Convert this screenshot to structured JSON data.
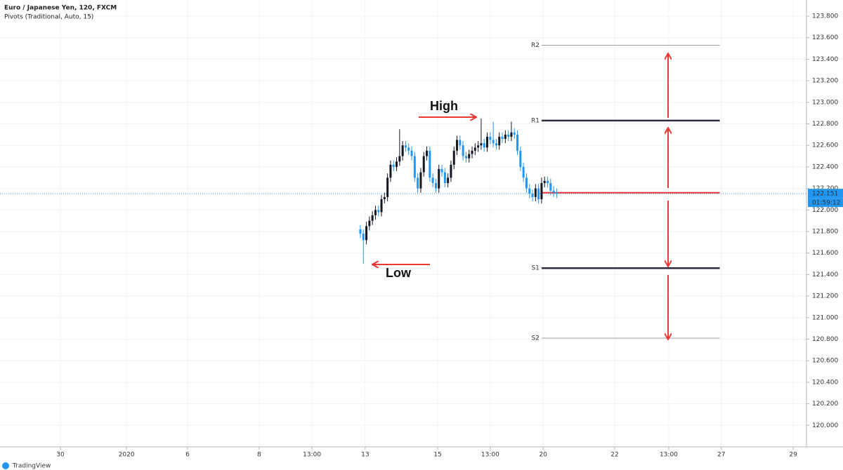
{
  "chart_data": {
    "type": "candlestick",
    "title": "Euro / Japanese Yen, 120, FXCM",
    "subtitle": "Pivots (Traditional, Auto, 15)",
    "brand": "TradingView",
    "up_color": "#131722",
    "down_color": "#2196f3",
    "grid": true,
    "x": [
      0,
      1,
      2,
      3,
      4,
      5,
      6,
      7,
      8,
      9,
      10,
      11,
      12,
      13,
      14,
      15,
      16,
      17,
      18,
      19,
      20,
      21,
      22,
      23,
      24,
      25,
      26,
      27,
      28,
      29,
      30,
      31,
      32,
      33,
      34,
      35,
      36,
      37,
      38,
      39,
      40,
      41,
      42,
      43,
      44,
      45,
      46,
      47,
      48,
      49,
      50,
      51,
      52,
      53,
      54,
      55,
      56,
      57,
      58,
      59,
      60,
      61,
      62,
      63,
      64,
      65
    ],
    "open": [
      121.82,
      121.78,
      121.72,
      121.85,
      121.9,
      121.95,
      122.0,
      121.98,
      122.1,
      122.12,
      122.3,
      122.42,
      122.4,
      122.45,
      122.5,
      122.6,
      122.58,
      122.55,
      122.5,
      122.3,
      122.2,
      122.35,
      122.5,
      122.55,
      122.3,
      122.25,
      122.2,
      122.38,
      122.35,
      122.25,
      122.3,
      122.42,
      122.55,
      122.65,
      122.6,
      122.5,
      122.48,
      122.52,
      122.55,
      122.58,
      122.6,
      122.62,
      122.58,
      122.68,
      122.65,
      122.62,
      122.6,
      122.68,
      122.66,
      122.7,
      122.68,
      122.72,
      122.7,
      122.55,
      122.4,
      122.3,
      122.2,
      122.15,
      122.12,
      122.2,
      122.1,
      122.25,
      122.27,
      122.25,
      122.18,
      122.16
    ],
    "high": [
      121.86,
      121.82,
      121.89,
      121.94,
      121.99,
      122.04,
      122.04,
      122.14,
      122.16,
      122.34,
      122.46,
      122.46,
      122.49,
      122.75,
      122.64,
      122.64,
      122.62,
      122.59,
      122.54,
      122.34,
      122.39,
      122.54,
      122.59,
      122.59,
      122.34,
      122.29,
      122.42,
      122.42,
      122.39,
      122.34,
      122.46,
      122.59,
      122.69,
      122.69,
      122.64,
      122.54,
      122.56,
      122.59,
      122.62,
      122.64,
      122.85,
      122.66,
      122.72,
      122.72,
      122.82,
      122.66,
      122.72,
      122.72,
      122.74,
      122.74,
      122.82,
      122.76,
      122.74,
      122.59,
      122.44,
      122.34,
      122.24,
      122.19,
      122.24,
      122.24,
      122.3,
      122.31,
      122.31,
      122.29,
      122.22,
      122.2
    ],
    "low": [
      121.74,
      121.5,
      121.68,
      121.81,
      121.86,
      121.91,
      121.94,
      121.94,
      122.06,
      122.08,
      122.26,
      122.36,
      122.36,
      122.41,
      122.46,
      122.54,
      122.51,
      122.46,
      122.26,
      122.16,
      122.16,
      122.31,
      122.46,
      122.26,
      122.21,
      122.16,
      122.16,
      122.31,
      122.21,
      122.21,
      122.26,
      122.38,
      122.51,
      122.56,
      122.46,
      122.44,
      122.44,
      122.48,
      122.51,
      122.54,
      122.56,
      122.54,
      122.54,
      122.61,
      122.58,
      122.56,
      122.56,
      122.62,
      122.62,
      122.64,
      122.64,
      122.66,
      122.51,
      122.36,
      122.26,
      122.16,
      122.11,
      122.08,
      122.08,
      122.06,
      122.06,
      122.21,
      122.21,
      122.14,
      122.12,
      122.11
    ],
    "close": [
      121.78,
      121.72,
      121.85,
      121.9,
      121.95,
      122.0,
      121.98,
      122.1,
      122.12,
      122.3,
      122.42,
      122.4,
      122.45,
      122.5,
      122.6,
      122.58,
      122.55,
      122.5,
      122.3,
      122.2,
      122.35,
      122.5,
      122.55,
      122.3,
      122.25,
      122.2,
      122.38,
      122.35,
      122.25,
      122.3,
      122.42,
      122.55,
      122.65,
      122.6,
      122.5,
      122.48,
      122.52,
      122.55,
      122.58,
      122.6,
      122.62,
      122.58,
      122.68,
      122.65,
      122.62,
      122.6,
      122.68,
      122.66,
      122.7,
      122.68,
      122.72,
      122.7,
      122.55,
      122.4,
      122.3,
      122.2,
      122.15,
      122.12,
      122.2,
      122.1,
      122.25,
      122.27,
      122.25,
      122.18,
      122.16,
      122.15
    ],
    "pivots": {
      "x_range": [
        60,
        119
      ],
      "levels": [
        {
          "name": "R2",
          "value": 123.53,
          "color": "#9e9e9e"
        },
        {
          "name": "R1",
          "value": 122.83,
          "color": "#2a2e39"
        },
        {
          "value": 122.16,
          "color": "#f23630"
        },
        {
          "name": "S1",
          "value": 121.46,
          "color": "#2a2e39"
        },
        {
          "name": "S2",
          "value": 120.81,
          "color": "#9e9e9e"
        }
      ]
    },
    "last_price": 122.151,
    "countdown": "01:59:12",
    "annotations": {
      "high": "High",
      "low": "Low"
    },
    "xlim": [
      -119.3,
      147.7
    ],
    "xticks": [
      {
        "value": -99.3,
        "label": "30"
      },
      {
        "value": -77.4,
        "label": "2020"
      },
      {
        "value": -57.2,
        "label": "6"
      },
      {
        "value": -33.5,
        "label": "8"
      },
      {
        "value": -16.0,
        "label": "13:00"
      },
      {
        "value": 1.6,
        "label": "13"
      },
      {
        "value": 25.6,
        "label": "15"
      },
      {
        "value": 43.0,
        "label": "13:00"
      },
      {
        "value": 60.5,
        "label": "20"
      },
      {
        "value": 84.2,
        "label": "22"
      },
      {
        "value": 102.1,
        "label": "13:00"
      },
      {
        "value": 119.5,
        "label": "27"
      },
      {
        "value": 143.3,
        "label": "29"
      }
    ],
    "ylim": [
      119.8,
      123.95
    ],
    "yticks": [
      {
        "value": 120.0,
        "label": "120.000"
      },
      {
        "value": 120.2,
        "label": "120.200"
      },
      {
        "value": 120.4,
        "label": "120.400"
      },
      {
        "value": 120.6,
        "label": "120.600"
      },
      {
        "value": 120.8,
        "label": "120.800"
      },
      {
        "value": 121.0,
        "label": "121.000"
      },
      {
        "value": 121.2,
        "label": "121.200"
      },
      {
        "value": 121.4,
        "label": "121.400"
      },
      {
        "value": 121.6,
        "label": "121.600"
      },
      {
        "value": 121.8,
        "label": "121.800"
      },
      {
        "value": 122.0,
        "label": "122.000"
      },
      {
        "value": 122.2,
        "label": "122.200"
      },
      {
        "value": 122.4,
        "label": "122.400"
      },
      {
        "value": 122.6,
        "label": "122.600"
      },
      {
        "value": 122.8,
        "label": "122.800"
      },
      {
        "value": 123.0,
        "label": "123.000"
      },
      {
        "value": 123.2,
        "label": "123.200"
      },
      {
        "value": 123.4,
        "label": "123.400"
      },
      {
        "value": 123.6,
        "label": "123.600"
      },
      {
        "value": 123.8,
        "label": "123.800"
      }
    ]
  }
}
